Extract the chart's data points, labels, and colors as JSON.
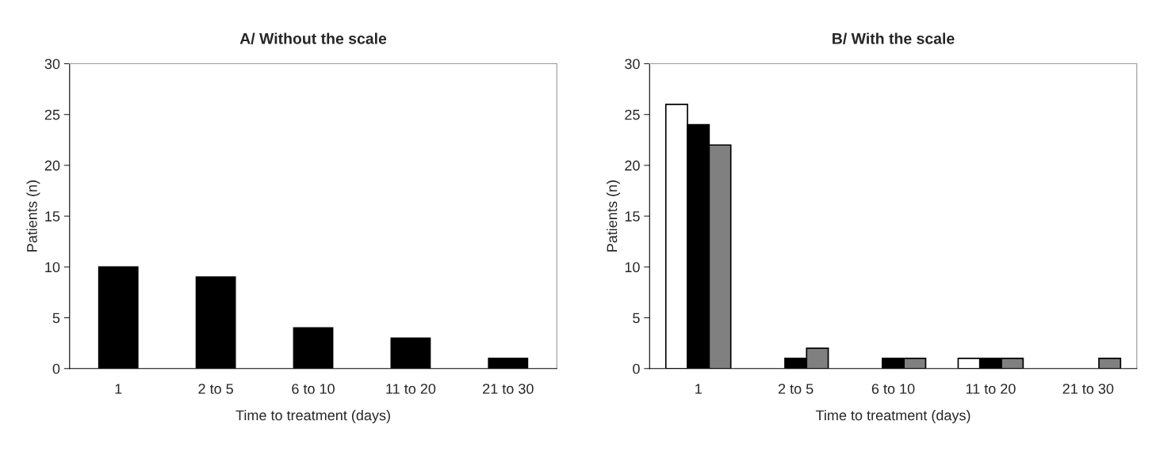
{
  "chart_data": [
    {
      "type": "bar",
      "title": "A/ Without the scale",
      "xlabel": "Time to treatment (days)",
      "ylabel": "Patients (n)",
      "categories": [
        "1",
        "2 to 5",
        "6 to 10",
        "11 to 20",
        "21 to 30"
      ],
      "values": [
        10,
        9,
        4,
        3,
        1
      ],
      "color": "#000000",
      "ylim": [
        0,
        30
      ],
      "yticks": [
        0,
        5,
        10,
        15,
        20,
        25,
        30
      ],
      "grid": false
    },
    {
      "type": "bar",
      "title": "B/ With the scale",
      "xlabel": "Time to treatment (days)",
      "ylabel": "Patients (n)",
      "categories": [
        "1",
        "2 to 5",
        "6 to 10",
        "11 to 20",
        "21 to 30"
      ],
      "series": [
        {
          "color": "#ffffff",
          "values": [
            26,
            0,
            0,
            1,
            0
          ]
        },
        {
          "color": "#000000",
          "values": [
            24,
            1,
            1,
            1,
            0
          ]
        },
        {
          "color": "#808080",
          "values": [
            22,
            2,
            1,
            1,
            1
          ]
        }
      ],
      "ylim": [
        0,
        30
      ],
      "yticks": [
        0,
        5,
        10,
        15,
        20,
        25,
        30
      ],
      "grid": false
    }
  ]
}
